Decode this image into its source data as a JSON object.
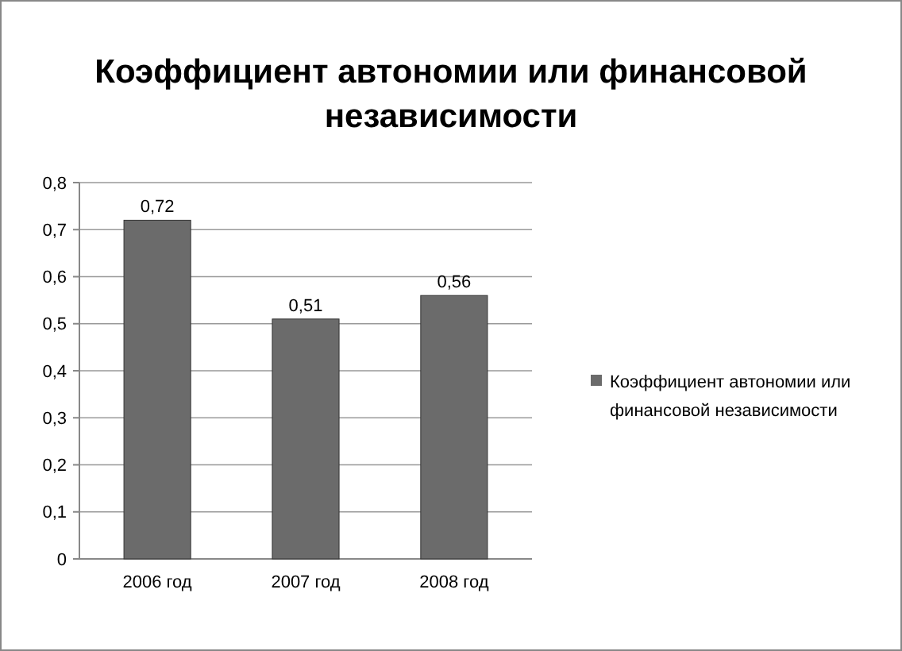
{
  "chart_data": {
    "type": "bar",
    "title": "Коэффициент автономии или финансовой независимости",
    "categories": [
      "2006 год",
      "2007 год",
      "2008 год"
    ],
    "series": [
      {
        "name": "Коэффициент автономии или финансовой независимости",
        "color": "#6b6b6b",
        "values": [
          0.72,
          0.51,
          0.56
        ],
        "value_labels": [
          "0,72",
          "0,51",
          "0,56"
        ]
      }
    ],
    "ylim": [
      0,
      0.8
    ],
    "yticks": [
      {
        "value": 0,
        "label": "0"
      },
      {
        "value": 0.1,
        "label": "0,1"
      },
      {
        "value": 0.2,
        "label": "0,2"
      },
      {
        "value": 0.3,
        "label": "0,3"
      },
      {
        "value": 0.4,
        "label": "0,4"
      },
      {
        "value": 0.5,
        "label": "0,5"
      },
      {
        "value": 0.6,
        "label": "0,6"
      },
      {
        "value": 0.7,
        "label": "0,7"
      },
      {
        "value": 0.8,
        "label": "0,8"
      }
    ],
    "grid": "y",
    "legend": "right"
  }
}
